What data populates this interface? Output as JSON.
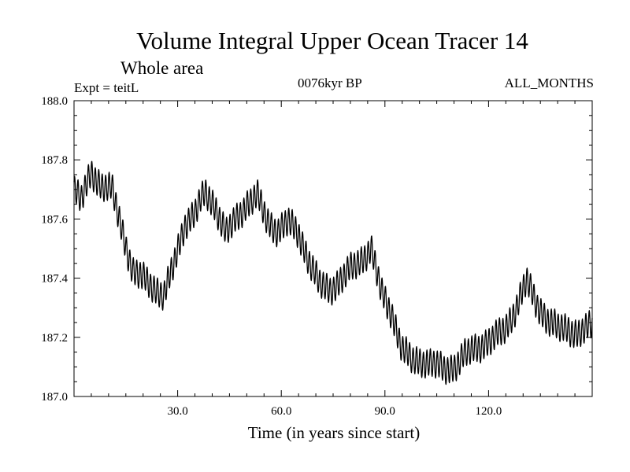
{
  "chart_data": {
    "type": "line",
    "title": "Volume Integral Upper Ocean Tracer 14",
    "subtitle": "Whole area",
    "expt_label": "Expt = teitL",
    "epoch_label": "0076kyr BP",
    "months_label": "ALL_MONTHS",
    "xlabel": "Time (in years since start)",
    "ylabel": "",
    "xlim": [
      0,
      150
    ],
    "ylim": [
      187.0,
      188.0
    ],
    "x_ticks": [
      30.0,
      60.0,
      90.0,
      120.0
    ],
    "x_tick_labels": [
      "30.0",
      "60.0",
      "90.0",
      "120.0"
    ],
    "y_ticks": [
      187.0,
      187.2,
      187.4,
      187.6,
      187.8,
      188.0
    ],
    "y_tick_labels": [
      "187.0",
      "187.2",
      "187.4",
      "187.6",
      "187.8",
      "188.0"
    ],
    "seasonal_amplitude": 0.045,
    "series": [
      {
        "name": "Tracer 14",
        "x": [
          0,
          2,
          5,
          8,
          11,
          14,
          17,
          20,
          23,
          26,
          29,
          32,
          35,
          38,
          41,
          44,
          47,
          50,
          53,
          56,
          59,
          62,
          65,
          68,
          71,
          74,
          77,
          80,
          83,
          86,
          89,
          92,
          95,
          98,
          101,
          104,
          107,
          110,
          113,
          116,
          119,
          122,
          125,
          128,
          131,
          134,
          137,
          140,
          143,
          146,
          150
        ],
        "values": [
          187.7,
          187.66,
          187.76,
          187.71,
          187.7,
          187.56,
          187.42,
          187.4,
          187.37,
          187.34,
          187.45,
          187.58,
          187.62,
          187.69,
          187.64,
          187.55,
          187.6,
          187.65,
          187.68,
          187.59,
          187.56,
          187.59,
          187.55,
          187.46,
          187.38,
          187.36,
          187.39,
          187.43,
          187.46,
          187.5,
          187.35,
          187.28,
          187.16,
          187.12,
          187.12,
          187.11,
          187.09,
          187.1,
          187.14,
          187.16,
          187.18,
          187.2,
          187.23,
          187.3,
          187.39,
          187.31,
          187.26,
          187.23,
          187.23,
          187.21,
          187.24
        ]
      }
    ]
  }
}
